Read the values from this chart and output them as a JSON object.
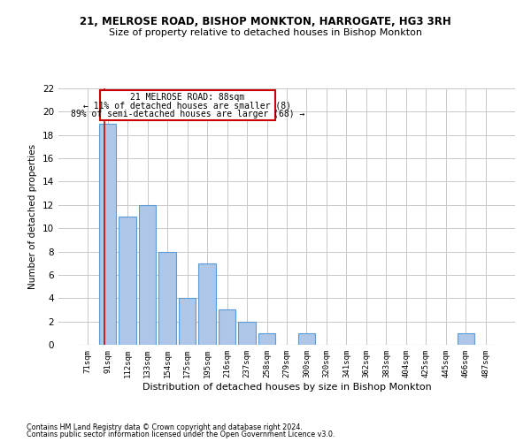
{
  "title1": "21, MELROSE ROAD, BISHOP MONKTON, HARROGATE, HG3 3RH",
  "title2": "Size of property relative to detached houses in Bishop Monkton",
  "xlabel": "Distribution of detached houses by size in Bishop Monkton",
  "ylabel": "Number of detached properties",
  "categories": [
    "71sqm",
    "91sqm",
    "112sqm",
    "133sqm",
    "154sqm",
    "175sqm",
    "195sqm",
    "216sqm",
    "237sqm",
    "258sqm",
    "279sqm",
    "300sqm",
    "320sqm",
    "341sqm",
    "362sqm",
    "383sqm",
    "404sqm",
    "425sqm",
    "445sqm",
    "466sqm",
    "487sqm"
  ],
  "values": [
    0,
    19,
    11,
    12,
    8,
    4,
    7,
    3,
    2,
    1,
    0,
    1,
    0,
    0,
    0,
    0,
    0,
    0,
    0,
    1,
    0
  ],
  "bar_color": "#aec6e8",
  "bar_edge_color": "#5b9bd5",
  "grid_color": "#c8c8c8",
  "annotation_line1": "21 MELROSE ROAD: 88sqm",
  "annotation_line2": "← 11% of detached houses are smaller (8)",
  "annotation_line3": "89% of semi-detached houses are larger (68) →",
  "annotation_box_color": "#ffffff",
  "annotation_box_edge": "#cc0000",
  "footer1": "Contains HM Land Registry data © Crown copyright and database right 2024.",
  "footer2": "Contains public sector information licensed under the Open Government Licence v3.0.",
  "ylim": [
    0,
    22
  ],
  "yticks": [
    0,
    2,
    4,
    6,
    8,
    10,
    12,
    14,
    16,
    18,
    20,
    22
  ],
  "bg_color": "#ffffff"
}
